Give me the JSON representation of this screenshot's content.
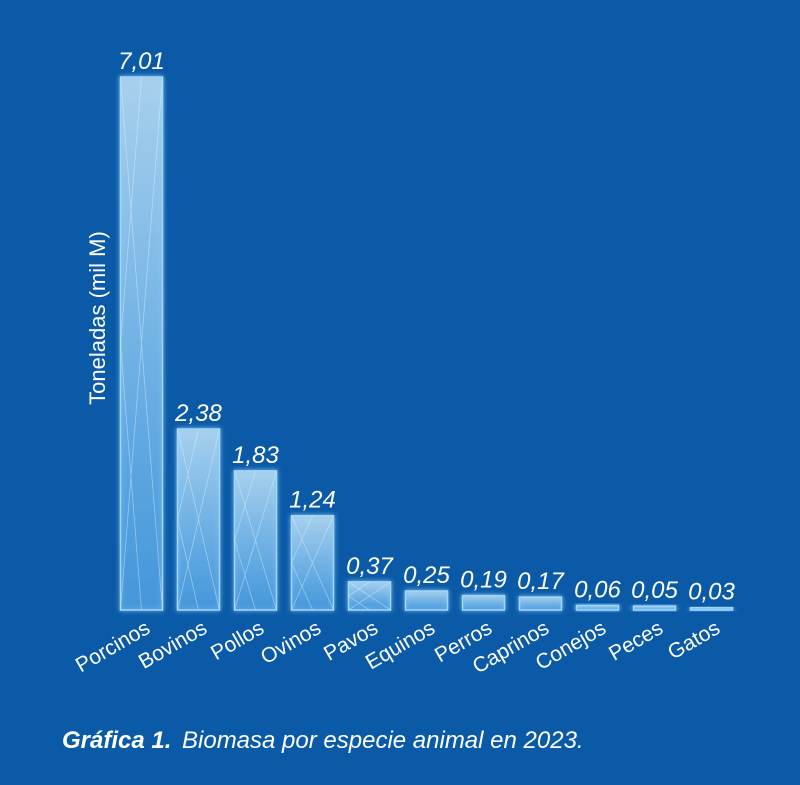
{
  "chart_data": {
    "type": "bar",
    "y_label": "Toneladas (mil M)",
    "categories": [
      "Porcinos",
      "Bovinos",
      "Pollos",
      "Ovinos",
      "Pavos",
      "Equinos",
      "Perros",
      "Caprinos",
      "Conejos",
      "Peces",
      "Gatos"
    ],
    "values": [
      7.01,
      2.38,
      1.83,
      1.24,
      0.37,
      0.25,
      0.19,
      0.17,
      0.06,
      0.05,
      0.03
    ],
    "value_labels": [
      "7,01",
      "2,38",
      "1,83",
      "1,24",
      "0,37",
      "0,25",
      "0,19",
      "0,17",
      "0,06",
      "0,05",
      "0,03"
    ],
    "color": "#9fd8ff"
  },
  "caption": {
    "label": "Gráfica 1.",
    "text": "Biomasa por especie animal en 2023."
  }
}
